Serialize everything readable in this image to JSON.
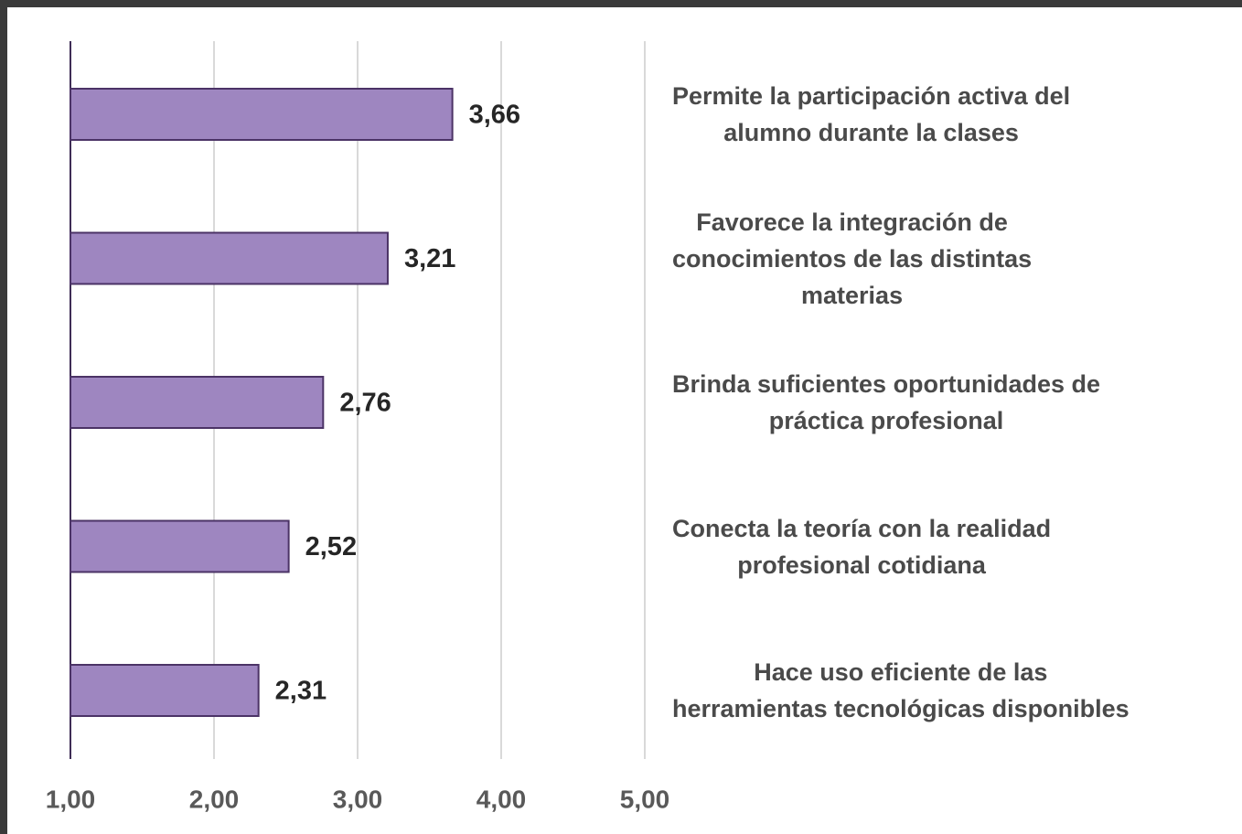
{
  "chart_data": {
    "type": "barh",
    "categories": [
      "Permite la participación activa del\nalumno durante la clases",
      "Favorece la integración de\nconocimientos de las distintas\nmaterias",
      "Brinda suficientes oportunidades de\npráctica profesional",
      "Conecta la teoría con la realidad\nprofesional cotidiana",
      "Hace uso eficiente de las\nherramientas tecnológicas disponibles"
    ],
    "values": [
      3.66,
      3.21,
      2.76,
      2.52,
      2.31
    ],
    "value_labels": [
      "3,66",
      "3,21",
      "2,76",
      "2,52",
      "2,31"
    ],
    "color": "#9e86c0",
    "xlim": [
      1,
      5
    ],
    "xticks": [
      {
        "value": 1,
        "label": "1,00"
      },
      {
        "value": 2,
        "label": "2,00"
      },
      {
        "value": 3,
        "label": "3,00"
      },
      {
        "value": 4,
        "label": "4,00"
      },
      {
        "value": 5,
        "label": "5,00"
      }
    ],
    "grid": true
  }
}
